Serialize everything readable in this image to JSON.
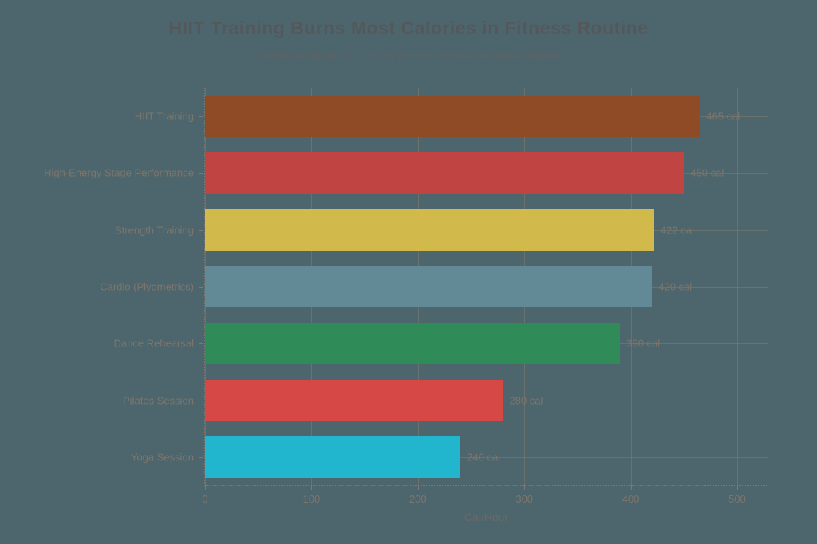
{
  "header": {
    "title": "HIIT Training Burns Most Calories in Fitness Routine",
    "subtitle": "Estimates based on 155 lb person across various activities"
  },
  "chart_data": {
    "type": "bar",
    "orientation": "horizontal",
    "title": "HIIT Training Burns Most Calories in Fitness Routine",
    "subtitle": "Estimates based on 155 lb person across various activities",
    "categories": [
      "HIIT Training",
      "High-Energy Stage Performance",
      "Strength Training",
      "Cardio (Plyometrics)",
      "Dance Rehearsal",
      "Pilates Session",
      "Yoga Session"
    ],
    "values": [
      465,
      450,
      422,
      420,
      390,
      280,
      240
    ],
    "value_labels": [
      "465 cal",
      "450 cal",
      "422 cal",
      "420 cal",
      "390 cal",
      "280 cal",
      "240 cal"
    ],
    "bar_colors": [
      "#8F4A26",
      "#C04442",
      "#D1B94B",
      "#618996",
      "#2F8B57",
      "#D64845",
      "#22B6CE"
    ],
    "xlabel": "Cal/Hour",
    "xticks": [
      0,
      100,
      200,
      300,
      400,
      500
    ],
    "xlim": [
      0,
      530
    ],
    "grid": true,
    "legend": "none",
    "background_color": "#4D666E",
    "grid_color": "#857B6F",
    "text_color": "#7E7569"
  }
}
